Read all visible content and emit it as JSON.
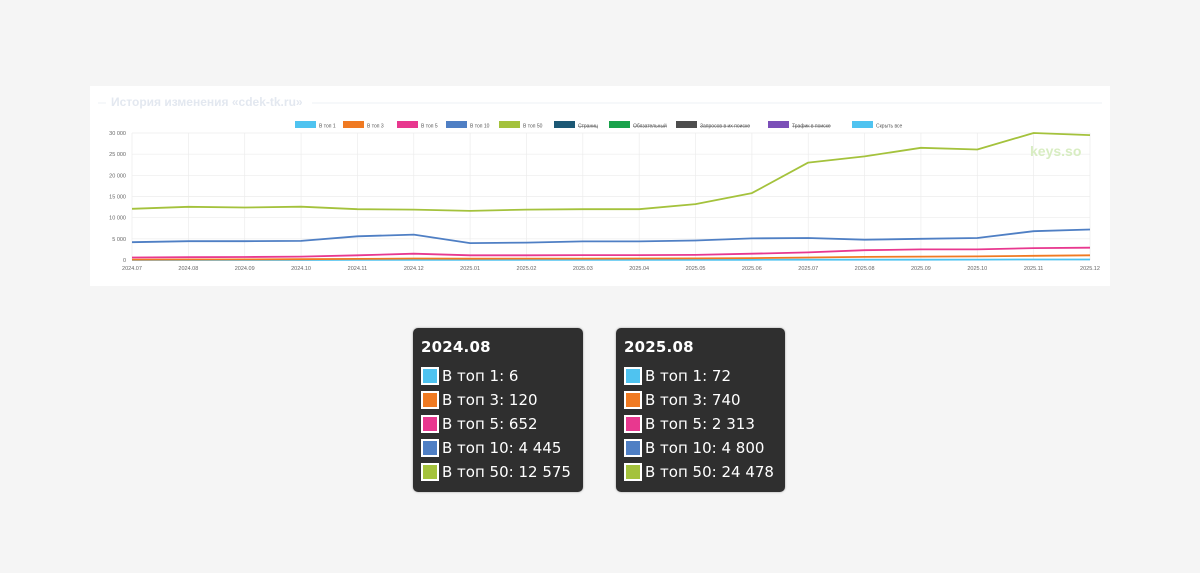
{
  "chart_data": {
    "type": "line",
    "title": "История изменения «cdek-tk.ru»",
    "watermark": "keys.so",
    "categories": [
      "2024.07",
      "2024.08",
      "2024.09",
      "2024.10",
      "2024.11",
      "2024.12",
      "2025.01",
      "2025.02",
      "2025.03",
      "2025.04",
      "2025.05",
      "2025.06",
      "2025.07",
      "2025.08",
      "2025.09",
      "2025.10",
      "2025.11",
      "2025.12"
    ],
    "yticks": [
      "30 000",
      "25 000",
      "20 000",
      "15 000",
      "10 000",
      "5 000",
      "0"
    ],
    "ylim": [
      0,
      30000
    ],
    "grid": true,
    "legend_position": "top",
    "legend": [
      {
        "label": "В топ 1",
        "color": "#4fc3f0",
        "struck": false
      },
      {
        "label": "В топ 3",
        "color": "#f07a22",
        "struck": false
      },
      {
        "label": "В топ 5",
        "color": "#e8388f",
        "struck": false
      },
      {
        "label": "В топ 10",
        "color": "#4f7fc4",
        "struck": false
      },
      {
        "label": "В топ 50",
        "color": "#a4c23c",
        "struck": false
      },
      {
        "label": "Страниц",
        "color": "#1c5875",
        "struck": true
      },
      {
        "label": "Обязательный",
        "color": "#1aa24b",
        "struck": true
      },
      {
        "label": "Запросов в их поиске",
        "color": "#4d4d4d",
        "struck": true
      },
      {
        "label": "Трафик в поиске",
        "color": "#7b4fb8",
        "struck": true
      },
      {
        "label": "Скрыть все",
        "color": "#4fc3f0",
        "struck": false
      }
    ],
    "series": [
      {
        "name": "В топ 1",
        "color": "#4fc3f0",
        "values": [
          5,
          6,
          8,
          10,
          15,
          20,
          25,
          30,
          35,
          40,
          45,
          55,
          65,
          72,
          80,
          90,
          110,
          120
        ]
      },
      {
        "name": "В топ 3",
        "color": "#f07a22",
        "values": [
          100,
          120,
          150,
          180,
          250,
          350,
          300,
          320,
          340,
          360,
          380,
          450,
          600,
          740,
          800,
          850,
          1000,
          1100
        ]
      },
      {
        "name": "В топ 5",
        "color": "#e8388f",
        "values": [
          600,
          652,
          700,
          800,
          1100,
          1500,
          1100,
          1100,
          1150,
          1150,
          1200,
          1500,
          1800,
          2313,
          2500,
          2500,
          2800,
          2900
        ]
      },
      {
        "name": "В топ 10",
        "color": "#4f7fc4",
        "values": [
          4200,
          4445,
          4450,
          4500,
          5600,
          6000,
          4000,
          4100,
          4400,
          4400,
          4600,
          5100,
          5200,
          4800,
          5000,
          5200,
          6800,
          7200
        ]
      },
      {
        "name": "В топ 50",
        "color": "#a4c23c",
        "values": [
          12100,
          12575,
          12400,
          12600,
          12000,
          11900,
          11600,
          11900,
          12000,
          12000,
          13200,
          15800,
          23000,
          24478,
          26500,
          26100,
          30000,
          29500
        ]
      }
    ]
  },
  "tooltips": [
    {
      "title": "2024.08",
      "rows": [
        {
          "text": "В топ 1: 6",
          "color": "#4fc3f0"
        },
        {
          "text": "В топ 3: 120",
          "color": "#f07a22"
        },
        {
          "text": "В топ 5: 652",
          "color": "#e8388f"
        },
        {
          "text": "В топ 10: 4 445",
          "color": "#4f7fc4"
        },
        {
          "text": "В топ 50: 12 575",
          "color": "#a4c23c"
        }
      ]
    },
    {
      "title": "2025.08",
      "rows": [
        {
          "text": "В топ 1: 72",
          "color": "#4fc3f0"
        },
        {
          "text": "В топ 3: 740",
          "color": "#f07a22"
        },
        {
          "text": "В топ 5: 2 313",
          "color": "#e8388f"
        },
        {
          "text": "В топ 10: 4 800",
          "color": "#4f7fc4"
        },
        {
          "text": "В топ 50: 24 478",
          "color": "#a4c23c"
        }
      ]
    }
  ]
}
